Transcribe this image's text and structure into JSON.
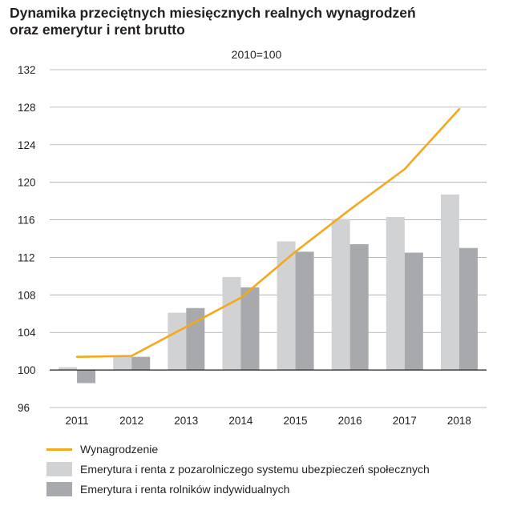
{
  "title_line1": "Dynamika przeciętnych miesięcznych realnych wynagrodzeń",
  "title_line2": "oraz emerytur i rent brutto",
  "chart_data": {
    "type": "bar",
    "subtitle": "2010=100",
    "categories": [
      "2011",
      "2012",
      "2013",
      "2014",
      "2015",
      "2016",
      "2017",
      "2018"
    ],
    "ylim": [
      96,
      132
    ],
    "yticks": [
      96,
      100,
      104,
      108,
      112,
      116,
      120,
      124,
      128,
      132
    ],
    "baseline": 100,
    "grid": true,
    "series": [
      {
        "name": "Emerytura i renta z pozarolniczego systemu ubezpieczeń społecznych",
        "type": "bar",
        "color": "#d1d2d3",
        "values": [
          100.3,
          101.5,
          106.1,
          109.9,
          113.7,
          116.1,
          116.3,
          118.7
        ]
      },
      {
        "name": "Emerytura i renta rolników indywidualnych",
        "type": "bar",
        "color": "#a7a9ac",
        "values": [
          98.6,
          101.4,
          106.6,
          108.8,
          112.6,
          113.4,
          112.5,
          113.0
        ]
      },
      {
        "name": "Wynagrodzenie",
        "type": "line",
        "color": "#f5a81c",
        "values": [
          101.4,
          101.5,
          104.6,
          107.7,
          112.6,
          117.1,
          121.4,
          127.8
        ]
      }
    ],
    "legend": [
      {
        "label": "Wynagrodzenie",
        "kind": "line",
        "color": "#f5a81c"
      },
      {
        "label": "Emerytura i renta z pozarolniczego systemu ubezpieczeń społecznych",
        "kind": "box",
        "color": "#d1d2d3"
      },
      {
        "label": "Emerytura i renta rolników indywidualnych",
        "kind": "box",
        "color": "#a7a9ac"
      }
    ]
  }
}
